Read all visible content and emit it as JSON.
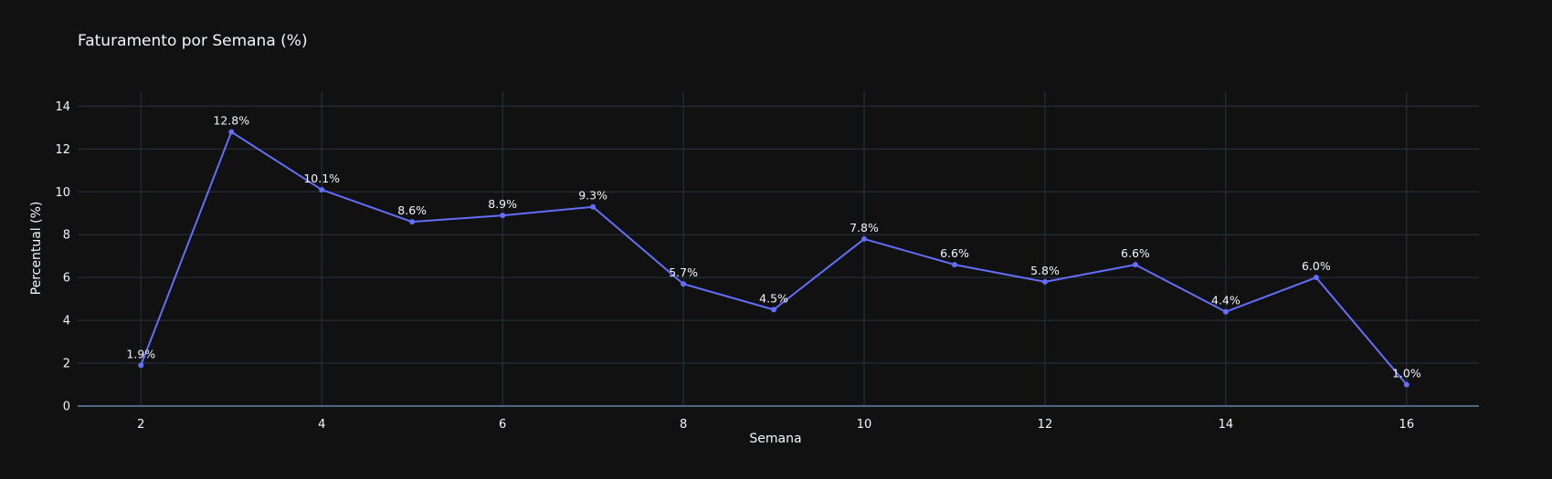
{
  "chart_data": {
    "type": "line",
    "title": "Faturamento por Semana (%)",
    "xlabel": "Semana",
    "ylabel": "Percentual (%)",
    "xlim": [
      1.3,
      16.8
    ],
    "ylim": [
      0,
      14.7
    ],
    "x_ticks": [
      2,
      4,
      6,
      8,
      10,
      12,
      14,
      16
    ],
    "y_ticks": [
      0,
      2,
      4,
      6,
      8,
      10,
      12,
      14
    ],
    "grid": true,
    "colors": {
      "background": "#111111",
      "grid": "#283442",
      "zeroline": "#506784",
      "text": "#f2f5fa",
      "line": "#636efa"
    },
    "series": [
      {
        "x": [
          2,
          3,
          4,
          5,
          6,
          7,
          8,
          9,
          10,
          11,
          12,
          13,
          14,
          15,
          16
        ],
        "values": [
          1.9,
          12.8,
          10.1,
          8.6,
          8.9,
          9.3,
          5.7,
          4.5,
          7.8,
          6.6,
          5.8,
          6.6,
          4.4,
          6.0,
          1.0
        ],
        "labels": [
          "1.9%",
          "12.8%",
          "10.1%",
          "8.6%",
          "8.9%",
          "9.3%",
          "5.7%",
          "4.5%",
          "7.8%",
          "6.6%",
          "5.8%",
          "6.6%",
          "4.4%",
          "6.0%",
          "1.0%"
        ]
      }
    ]
  }
}
